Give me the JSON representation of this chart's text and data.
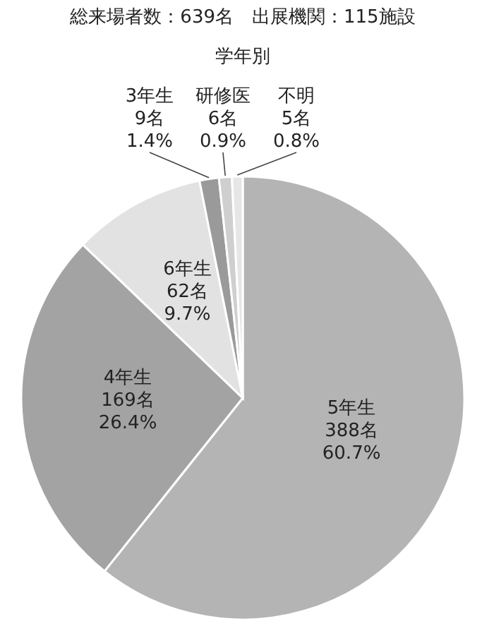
{
  "chart_data": {
    "type": "pie",
    "title": "総来場者数：639名　出展機関：115施設",
    "subtitle": "学年別",
    "categories": [
      "5年生",
      "4年生",
      "6年生",
      "3年生",
      "研修医",
      "不明"
    ],
    "values": [
      388,
      169,
      62,
      9,
      6,
      5
    ],
    "value_labels": [
      "388名\n60.7%",
      "169名\n26.4%",
      "62名\n9.7%",
      "9名\n1.4%",
      "6名\n0.9%",
      "5名\n0.8%"
    ],
    "colors": [
      "#b4b4b4",
      "#a3a3a3",
      "#e2e2e2",
      "#9a9a9a",
      "#cfcfcf",
      "#e6e6e6"
    ]
  }
}
